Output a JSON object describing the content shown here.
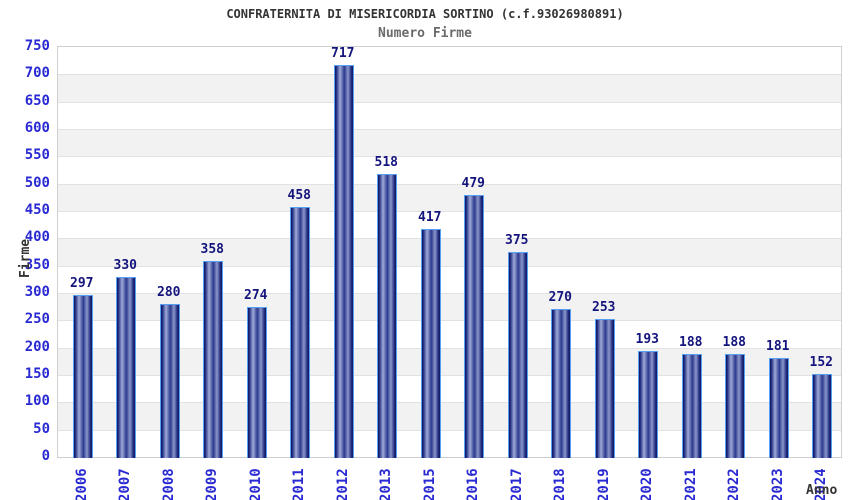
{
  "header": {
    "title": "CONFRATERNITA DI MISERICORDIA SORTINO (c.f.93026980891)",
    "subtitle": "Numero Firme"
  },
  "chart_data": {
    "type": "bar",
    "title": "CONFRATERNITA DI MISERICORDIA SORTINO (c.f.93026980891)",
    "subtitle": "Numero Firme",
    "xlabel": "Anno",
    "ylabel": "Firme",
    "categories": [
      "2006",
      "2007",
      "2008",
      "2009",
      "2010",
      "2011",
      "2012",
      "2013",
      "2015",
      "2016",
      "2017",
      "2018",
      "2019",
      "2020",
      "2021",
      "2022",
      "2023",
      "2024"
    ],
    "values": [
      297,
      330,
      280,
      358,
      274,
      458,
      717,
      518,
      417,
      479,
      375,
      270,
      253,
      193,
      188,
      188,
      181,
      152
    ],
    "ylim": [
      0,
      750
    ],
    "ytick_step": 50,
    "grid": "horizontal-bands-alternating",
    "legend_position": "none",
    "colors": {
      "bar_dark": "#10175e",
      "bar_highlight": "#9ea9d8",
      "bar_border": "#55a0f2",
      "tick_label": "#2a2ad2",
      "value_label": "#14147d",
      "band_gray": "#f2f2f2",
      "band_white": "#ffffff",
      "grid_line": "#e2e2e2",
      "plot_border": "#cfcfcf",
      "title_color": "#333333",
      "subtitle_color": "#6b6b6b"
    }
  }
}
